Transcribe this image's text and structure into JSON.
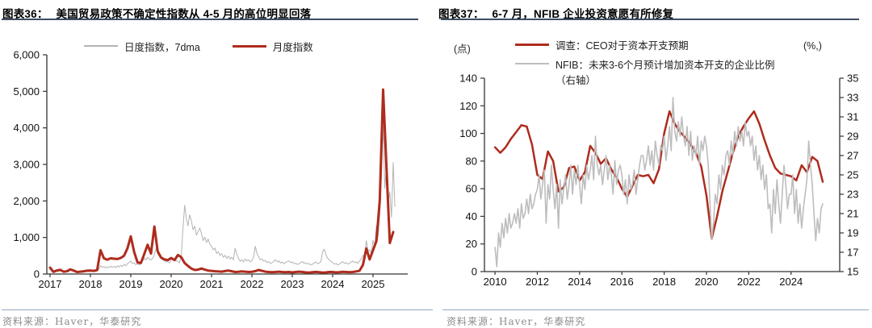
{
  "charts": [
    {
      "label": "图表36：",
      "title": "美国贸易政策不确定性指数从 4-5 月的高位明显回落",
      "source": "资料来源：Haver，华泰研究",
      "chart_data": {
        "type": "line",
        "title": "美国贸易政策不确定性指数从 4-5 月的高位明显回落",
        "grid": false,
        "legend_position": "top-center",
        "xlim": [
          2016.92,
          2025.86
        ],
        "ylim": [
          0,
          6000
        ],
        "y_tick_values": [
          0,
          1000,
          2000,
          3000,
          4000,
          5000,
          6000
        ],
        "y_tick_labels": [
          "0",
          "1,000",
          "2,000",
          "3,000",
          "4,000",
          "5,000",
          "6,000"
        ],
        "x_tick_values": [
          2017,
          2018,
          2019,
          2020,
          2021,
          2022,
          2023,
          2024,
          2025
        ],
        "x_tick_labels": [
          "2017",
          "2018",
          "2019",
          "2020",
          "2021",
          "2022",
          "2023",
          "2024",
          "2025"
        ],
        "series": [
          {
            "name": "日度指数，7dma",
            "color": "#b3b3b3",
            "width": 1,
            "axis": "left",
            "x_start": 2017.0,
            "x_step": 0.0416667,
            "values": [
              130,
              70,
              80,
              55,
              95,
              65,
              105,
              70,
              60,
              45,
              75,
              55,
              115,
              85,
              90,
              60,
              55,
              42,
              65,
              50,
              75,
              58,
              88,
              70,
              95,
              72,
              85,
              65,
              105,
              135,
              230,
              185,
              205,
              165,
              195,
              175,
              215,
              185,
              205,
              175,
              225,
              195,
              235,
              205,
              265,
              225,
              285,
              315,
              355,
              285,
              305,
              255,
              285,
              245,
              305,
              355,
              425,
              385,
              455,
              405,
              385,
              425,
              530,
              700,
              560,
              480,
              425,
              385,
              365,
              325,
              345,
              305,
              385,
              425,
              405,
              365,
              345,
              305,
              520,
              1250,
              1880,
              1520,
              1320,
              1620,
              1460,
              1210,
              1310,
              1060,
              1160,
              1260,
              1110,
              910,
              1010,
              860,
              960,
              810,
              760,
              660,
              710,
              560,
              610,
              510,
              560,
              460,
              510,
              430,
              490,
              410,
              460,
              390,
              700,
              540,
              430,
              350,
              390,
              330,
              410,
              360,
              390,
              330,
              360,
              460,
              760,
              560,
              470,
              390,
              410,
              350,
              370,
              310,
              340,
              290,
              310,
              350,
              390,
              330,
              360,
              300,
              330,
              280,
              310,
              340,
              360,
              310,
              330,
              280,
              300,
              260,
              280,
              310,
              340,
              290,
              310,
              270,
              290,
              250,
              270,
              300,
              330,
              280,
              300,
              330,
              610,
              680,
              530,
              430,
              390,
              340,
              310,
              270,
              290,
              250,
              270,
              310,
              340,
              290,
              310,
              270,
              290,
              330,
              360,
              310,
              330,
              290,
              360,
              410,
              510,
              460,
              910,
              620,
              670,
              560,
              920,
              770,
              1320,
              1020,
              1620,
              2620,
              4050,
              2350,
              2950,
              1950,
              2250,
              1550,
              3050,
              1850
            ]
          },
          {
            "name": "月度指数",
            "color": "#ae2c1d",
            "width": 3,
            "axis": "left",
            "x_start": 2017.0,
            "x_step": 0.0833333,
            "values": [
              175,
              60,
              95,
              115,
              65,
              75,
              125,
              95,
              55,
              65,
              75,
              90,
              95,
              85,
              105,
              650,
              430,
              390,
              430,
              420,
              410,
              440,
              500,
              700,
              1030,
              600,
              320,
              300,
              550,
              800,
              560,
              1300,
              620,
              450,
              400,
              380,
              440,
              380,
              520,
              460,
              300,
              220,
              150,
              110,
              120,
              150,
              120,
              95,
              85,
              75,
              70,
              65,
              80,
              95,
              75,
              55,
              60,
              70,
              65,
              55,
              60,
              80,
              110,
              85,
              65,
              55,
              48,
              55,
              65,
              55,
              48,
              55,
              45,
              55,
              65,
              55,
              45,
              40,
              48,
              58,
              48,
              40,
              45,
              55,
              55,
              45,
              50,
              60,
              55,
              48,
              55,
              70,
              90,
              250,
              700,
              400,
              650,
              900,
              2000,
              5050,
              2900,
              850,
              1150
            ]
          }
        ]
      }
    },
    {
      "label": "图表37：",
      "title": "6-7 月，NFIB 企业投资意愿有所修复",
      "source": "资料来源：Haver，华泰研究",
      "chart_data": {
        "type": "line",
        "title": "6-7 月，NFIB 企业投资意愿有所修复",
        "grid": false,
        "legend_position": "top-left",
        "xlim": [
          2009.5,
          2026.3
        ],
        "left_axis": {
          "label": "(点)",
          "lim": [
            0,
            140
          ],
          "tick_values": [
            0,
            20,
            40,
            60,
            80,
            100,
            120,
            140
          ],
          "tick_labels": [
            "0",
            "20",
            "40",
            "60",
            "80",
            "100",
            "120",
            "140"
          ]
        },
        "right_axis": {
          "label": "(%,)",
          "lim": [
            15,
            35
          ],
          "tick_values": [
            15,
            17,
            19,
            21,
            23,
            25,
            27,
            29,
            31,
            33,
            35
          ],
          "tick_labels": [
            "15",
            "17",
            "19",
            "21",
            "23",
            "25",
            "27",
            "29",
            "31",
            "33",
            "35"
          ]
        },
        "x_tick_values": [
          2010,
          2012,
          2014,
          2016,
          2018,
          2020,
          2022,
          2024
        ],
        "x_tick_labels": [
          "2010",
          "2012",
          "2014",
          "2016",
          "2018",
          "2020",
          "2022",
          "2024"
        ],
        "series": [
          {
            "name": "调查：CEO对于资本开支预期",
            "color": "#ae2c1d",
            "width": 2.5,
            "axis": "left",
            "x_start": 2010.0,
            "x_step": 0.25,
            "values": [
              90,
              86,
              90,
              96,
              101,
              106,
              105,
              92,
              70,
              67,
              87,
              80,
              58,
              61,
              75,
              76,
              66,
              72,
              91,
              86,
              78,
              82,
              74,
              68,
              60,
              54,
              62,
              70,
              69,
              70,
              64,
              74,
              100,
              116,
              107,
              101,
              97,
              92,
              86,
              76,
              55,
              24,
              40,
              58,
              72,
              86,
              98,
              105,
              111,
              116,
              107,
              95,
              84,
              75,
              71,
              70,
              69,
              66,
              77,
              72,
              83,
              80,
              65
            ]
          },
          {
            "name": "NFIB：未来3-6个月预计增加资本开支的企业比例",
            "name_line2": "（右轴）",
            "color": "#bdbdbd",
            "width": 1.6,
            "axis": "right",
            "x_start": 2010.0,
            "x_step": 0.0833333,
            "values": [
              17.5,
              15.5,
              19,
              17.5,
              20,
              18.5,
              20.5,
              19,
              21,
              19.5,
              20,
              21,
              20,
              21.5,
              19.5,
              22,
              20.5,
              21,
              22.5,
              21,
              23,
              21.5,
              22,
              23,
              23.5,
              25,
              22.5,
              24,
              25.5,
              20,
              24,
              22.5,
              26,
              23.5,
              21.5,
              24,
              19.5,
              24.5,
              22,
              23.5,
              25,
              22.5,
              24,
              26,
              23,
              25.5,
              24,
              26,
              24,
              22,
              25,
              23.5,
              26,
              24.5,
              25.5,
              27,
              24.5,
              29,
              26,
              25,
              26,
              24,
              25.5,
              27,
              24.5,
              26,
              25,
              23,
              26.5,
              24,
              25.5,
              26,
              25,
              23,
              24.5,
              22,
              25,
              23.5,
              24,
              25.5,
              23,
              24.5,
              26,
              27,
              27,
              25.5,
              26.5,
              28,
              26,
              27.5,
              25.5,
              28.5,
              27,
              26,
              28,
              27.5,
              29,
              26.5,
              28,
              30,
              27.5,
              33,
              29.5,
              28.5,
              30.5,
              29,
              31,
              29,
              28,
              30,
              27,
              29.5,
              26.5,
              28,
              27,
              29,
              26,
              28.5,
              27.5,
              29,
              28,
              26,
              22,
              18.3,
              20,
              23,
              22,
              25,
              23.5,
              26,
              25,
              27,
              27.5,
              26,
              28.5,
              27,
              29.5,
              28,
              30,
              28.5,
              29.5,
              28,
              30.5,
              29,
              29.5,
              28,
              29,
              26.5,
              28,
              25.5,
              27,
              24.5,
              26,
              23.5,
              25,
              21.5,
              22,
              19,
              23.5,
              21,
              24.5,
              22,
              20,
              23,
              26,
              24,
              21.5,
              23,
              23,
              25,
              21,
              23.5,
              20,
              22,
              19.5,
              21.5,
              23,
              24.5,
              28.5,
              26,
              24,
              21,
              18.2,
              20.5,
              19,
              21.5,
              22
            ]
          }
        ]
      }
    }
  ]
}
